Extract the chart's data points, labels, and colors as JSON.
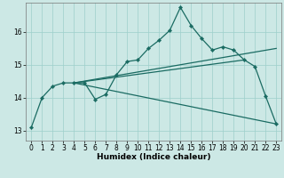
{
  "title": "",
  "xlabel": "Humidex (Indice chaleur)",
  "ylabel": "",
  "xlim": [
    -0.5,
    23.5
  ],
  "ylim": [
    12.7,
    16.9
  ],
  "yticks": [
    13,
    14,
    15,
    16
  ],
  "xticks": [
    0,
    1,
    2,
    3,
    4,
    5,
    6,
    7,
    8,
    9,
    10,
    11,
    12,
    13,
    14,
    15,
    16,
    17,
    18,
    19,
    20,
    21,
    22,
    23
  ],
  "bg_color": "#cce8e5",
  "line_color": "#1a6b62",
  "grid_color": "#9ecfcb",
  "main_line_x": [
    0,
    1,
    2,
    3,
    4,
    5,
    6,
    7,
    8,
    9,
    10,
    11,
    12,
    13,
    14,
    15,
    16,
    17,
    18,
    19,
    20,
    21,
    22,
    23
  ],
  "main_line_y": [
    13.1,
    14.0,
    14.35,
    14.45,
    14.45,
    14.45,
    13.95,
    14.1,
    14.7,
    15.1,
    15.15,
    15.5,
    15.75,
    16.05,
    16.75,
    16.2,
    15.8,
    15.45,
    15.55,
    15.45,
    15.15,
    14.95,
    14.05,
    13.2
  ],
  "extra_lines": [
    {
      "x": [
        4,
        23
      ],
      "y": [
        14.45,
        13.2
      ]
    },
    {
      "x": [
        4,
        20
      ],
      "y": [
        14.45,
        15.15
      ]
    },
    {
      "x": [
        4,
        23
      ],
      "y": [
        14.45,
        15.5
      ]
    }
  ],
  "xlabel_fontsize": 6.5,
  "tick_fontsize": 5.5,
  "lw": 0.9
}
